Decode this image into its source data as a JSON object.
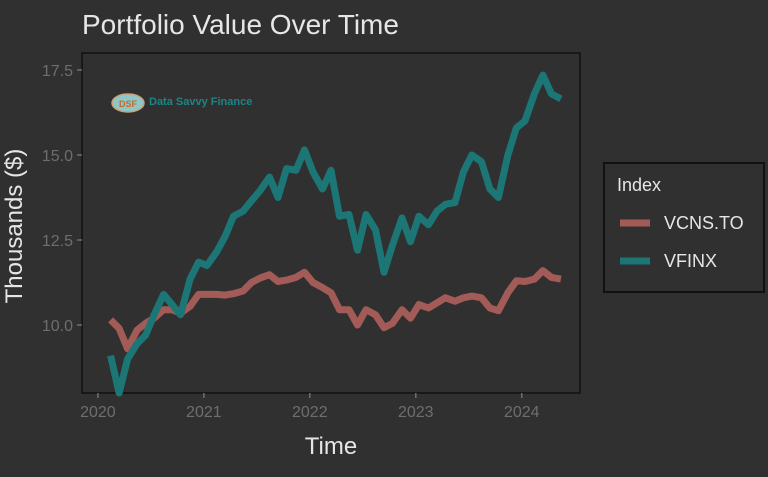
{
  "chart_data": {
    "type": "line",
    "title": "Portfolio Value Over Time",
    "xlabel": "Time",
    "ylabel": "Thousands ($)",
    "xlim": [
      2019.85,
      2024.55
    ],
    "ylim": [
      8.0,
      18.0
    ],
    "x_ticks": [
      {
        "value": 2020,
        "label": "2020"
      },
      {
        "value": 2021,
        "label": "2021"
      },
      {
        "value": 2022,
        "label": "2022"
      },
      {
        "value": 2023,
        "label": "2023"
      },
      {
        "value": 2024,
        "label": "2024"
      }
    ],
    "y_ticks": [
      {
        "value": 10.0,
        "label": "10.0"
      },
      {
        "value": 12.5,
        "label": "12.5"
      },
      {
        "value": 15.0,
        "label": "15.0"
      },
      {
        "value": 17.5,
        "label": "17.5"
      }
    ],
    "grid": false,
    "legend": {
      "title": "Index",
      "position": "right"
    },
    "watermark": {
      "text": "Data Savvy Finance",
      "logo_text": "DSF"
    },
    "series": [
      {
        "name": "VCNS.TO",
        "color": "#a35b57",
        "x": [
          2020.12,
          2020.2,
          2020.28,
          2020.37,
          2020.45,
          2020.53,
          2020.62,
          2020.7,
          2020.78,
          2020.87,
          2020.95,
          2021.03,
          2021.12,
          2021.2,
          2021.28,
          2021.37,
          2021.45,
          2021.53,
          2021.62,
          2021.7,
          2021.78,
          2021.87,
          2021.95,
          2022.03,
          2022.12,
          2022.2,
          2022.28,
          2022.37,
          2022.45,
          2022.53,
          2022.62,
          2022.7,
          2022.78,
          2022.87,
          2022.95,
          2023.03,
          2023.12,
          2023.2,
          2023.28,
          2023.37,
          2023.45,
          2023.53,
          2023.62,
          2023.7,
          2023.78,
          2023.87,
          2023.95,
          2024.03,
          2024.12,
          2024.2,
          2024.28,
          2024.37
        ],
        "values": [
          10.15,
          9.9,
          9.3,
          9.85,
          10.05,
          10.2,
          10.45,
          10.45,
          10.35,
          10.55,
          10.9,
          10.9,
          10.9,
          10.88,
          10.92,
          11.0,
          11.25,
          11.38,
          11.48,
          11.28,
          11.32,
          11.4,
          11.55,
          11.25,
          11.1,
          10.95,
          10.45,
          10.45,
          10.0,
          10.45,
          10.3,
          9.92,
          10.05,
          10.45,
          10.2,
          10.6,
          10.5,
          10.65,
          10.8,
          10.7,
          10.8,
          10.85,
          10.8,
          10.5,
          10.42,
          10.95,
          11.3,
          11.28,
          11.35,
          11.6,
          11.4,
          11.35
        ]
      },
      {
        "name": "VFINX",
        "color": "#1d7676",
        "x": [
          2020.12,
          2020.2,
          2020.28,
          2020.37,
          2020.45,
          2020.53,
          2020.62,
          2020.7,
          2020.78,
          2020.87,
          2020.95,
          2021.03,
          2021.12,
          2021.2,
          2021.28,
          2021.37,
          2021.45,
          2021.53,
          2021.62,
          2021.7,
          2021.78,
          2021.87,
          2021.95,
          2022.03,
          2022.12,
          2022.2,
          2022.28,
          2022.37,
          2022.45,
          2022.53,
          2022.62,
          2022.7,
          2022.78,
          2022.87,
          2022.95,
          2023.03,
          2023.12,
          2023.2,
          2023.28,
          2023.37,
          2023.45,
          2023.53,
          2023.62,
          2023.7,
          2023.78,
          2023.87,
          2023.95,
          2024.03,
          2024.12,
          2024.2,
          2024.28,
          2024.37
        ],
        "values": [
          9.1,
          8.0,
          9.0,
          9.45,
          9.7,
          10.3,
          10.9,
          10.6,
          10.3,
          11.35,
          11.85,
          11.75,
          12.15,
          12.6,
          13.2,
          13.35,
          13.65,
          13.95,
          14.35,
          13.75,
          14.6,
          14.55,
          15.15,
          14.5,
          14.0,
          14.55,
          13.2,
          13.25,
          12.2,
          13.25,
          12.8,
          11.55,
          12.35,
          13.15,
          12.45,
          13.2,
          12.95,
          13.35,
          13.55,
          13.6,
          14.5,
          15.0,
          14.8,
          14.0,
          13.75,
          15.0,
          15.8,
          16.0,
          16.8,
          17.35,
          16.8,
          16.65
        ]
      }
    ]
  }
}
